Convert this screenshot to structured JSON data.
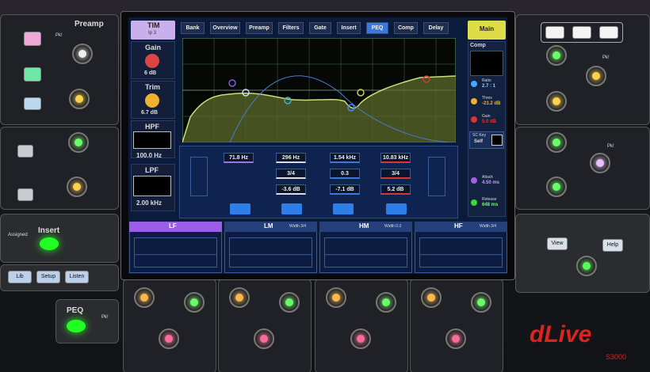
{
  "left_panel": {
    "preamp": "Preamp",
    "pk_1": "Pk!",
    "insert": "Insert",
    "assigned": "Assigned",
    "buttons": [
      "Lib",
      "Setup",
      "Listen"
    ],
    "peq": "PEQ",
    "pk_2": "Pk!"
  },
  "screen": {
    "channel": "TIM",
    "source": "Ip 3",
    "gain_label": "Gain",
    "gain": "6 dB",
    "trim_label": "Trim",
    "trim": "6.7 dB",
    "hpf_label": "HPF",
    "hpf": "100.0 Hz",
    "lpf_label": "LPF",
    "lpf": "2.00 kHz",
    "tabs": [
      "Bank",
      "Overview",
      "Preamp",
      "Filters",
      "Gate",
      "Insert",
      "PEQ",
      "Comp",
      "Delay"
    ],
    "main": "Main",
    "comp": {
      "title": "Comp",
      "ratio_label": "Ratio",
      "ratio": "2.7 : 1",
      "thres_label": "Thres",
      "thres": "-23.2 dB",
      "gain_label": "Gain",
      "gain": "5.0 dB",
      "sc_key_label": "SC Key",
      "sc_key": "Self",
      "attack_label": "Attack",
      "attack": "4.50 ms",
      "release_label": "Release",
      "release": "648 ms"
    },
    "peq": {
      "params": [
        [
          "71.8 Hz"
        ],
        [
          "296 Hz",
          "3/4",
          "-3.6 dB"
        ],
        [
          "1.54 kHz",
          "0.3",
          "-7.1 dB"
        ],
        [
          "10.83 kHz",
          "3/4",
          "5.2 dB"
        ]
      ],
      "bands": [
        {
          "name": "LF"
        },
        {
          "name": "LM",
          "width": "Width 3/4"
        },
        {
          "name": "HM",
          "width": "Width 0.3"
        },
        {
          "name": "HF",
          "width": "Width 3/4"
        }
      ]
    }
  },
  "right_panel": {
    "pk_1": "Pk!",
    "view": "View",
    "help": "Help",
    "pk_2": "Pk!"
  },
  "logo": {
    "brand": "dLive",
    "model": "S3000"
  }
}
